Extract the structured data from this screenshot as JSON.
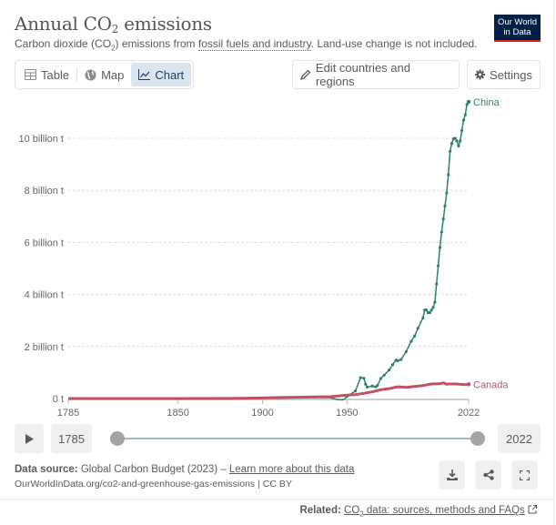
{
  "header": {
    "title_main": "Annual CO",
    "title_sub": "2",
    "title_rest": " emissions",
    "subtitle_pre": "Carbon dioxide (CO",
    "subtitle_sub": "2",
    "subtitle_mid": ") emissions from ",
    "subtitle_link": "fossil fuels and industry",
    "subtitle_post": ". Land-use change is not included.",
    "logo_line1": "Our World",
    "logo_line2": "in Data"
  },
  "tabs": [
    {
      "label": "Table",
      "icon": "table-icon",
      "active": false
    },
    {
      "label": "Map",
      "icon": "globe-icon",
      "active": false
    },
    {
      "label": "Chart",
      "icon": "line-chart-icon",
      "active": true
    }
  ],
  "toolbar": {
    "edit_label": "Edit countries and regions",
    "settings_label": "Settings"
  },
  "timeline": {
    "start_year": "1785",
    "end_year": "2022",
    "start_fraction": 0,
    "end_fraction": 1
  },
  "footer": {
    "source_label": "Data source:",
    "source_text": " Global Carbon Budget (2023) – ",
    "learn_more": "Learn more about this data",
    "url": "OurWorldInData.org/co2-and-greenhouse-gas-emissions | CC BY",
    "related_label": "Related:",
    "related_link_pre": "CO",
    "related_link_sub": "2",
    "related_link_post": " data: sources, methods and FAQs"
  },
  "colors": {
    "china": "#2c8465",
    "canada": "#c15065",
    "logo_bg": "#002147",
    "logo_accent": "#ce261e",
    "active_tab": "#dbe5f0"
  },
  "chart_data": {
    "type": "line",
    "title": "Annual CO2 emissions",
    "xlabel": "",
    "ylabel": "",
    "xlim": [
      1785,
      2022
    ],
    "ylim": [
      0,
      11.5
    ],
    "x_ticks": [
      "1785",
      "1850",
      "1900",
      "1950",
      "2022"
    ],
    "x_tick_values": [
      1785,
      1850,
      1900,
      1950,
      2022
    ],
    "y_ticks": [
      "0 t",
      "2 billion t",
      "4 billion t",
      "6 billion t",
      "8 billion t",
      "10 billion t"
    ],
    "y_tick_values": [
      0,
      2,
      4,
      6,
      8,
      10
    ],
    "grid": true,
    "legend": "inline-right",
    "series": [
      {
        "name": "China",
        "color": "#2c8465",
        "unit": "billion t",
        "points": [
          [
            1907,
            0.0
          ],
          [
            1915,
            0.02
          ],
          [
            1925,
            0.03
          ],
          [
            1935,
            0.04
          ],
          [
            1940,
            0.03
          ],
          [
            1945,
            -0.05
          ],
          [
            1948,
            -0.05
          ],
          [
            1950,
            0.08
          ],
          [
            1955,
            0.29
          ],
          [
            1958,
            0.8
          ],
          [
            1960,
            0.78
          ],
          [
            1961,
            0.55
          ],
          [
            1962,
            0.44
          ],
          [
            1965,
            0.48
          ],
          [
            1967,
            0.45
          ],
          [
            1968,
            0.5
          ],
          [
            1970,
            0.77
          ],
          [
            1972,
            0.9
          ],
          [
            1975,
            1.1
          ],
          [
            1977,
            1.3
          ],
          [
            1979,
            1.48
          ],
          [
            1980,
            1.45
          ],
          [
            1982,
            1.5
          ],
          [
            1985,
            1.8
          ],
          [
            1988,
            2.2
          ],
          [
            1990,
            2.4
          ],
          [
            1992,
            2.7
          ],
          [
            1995,
            3.1
          ],
          [
            1996,
            3.4
          ],
          [
            1997,
            3.4
          ],
          [
            1998,
            3.3
          ],
          [
            1999,
            3.3
          ],
          [
            2000,
            3.4
          ],
          [
            2001,
            3.5
          ],
          [
            2002,
            3.7
          ],
          [
            2003,
            4.4
          ],
          [
            2004,
            5.1
          ],
          [
            2005,
            5.8
          ],
          [
            2006,
            6.4
          ],
          [
            2007,
            6.9
          ],
          [
            2008,
            7.4
          ],
          [
            2009,
            7.9
          ],
          [
            2010,
            8.6
          ],
          [
            2011,
            9.5
          ],
          [
            2012,
            9.8
          ],
          [
            2013,
            9.98
          ],
          [
            2014,
            10.0
          ],
          [
            2015,
            9.9
          ],
          [
            2016,
            9.7
          ],
          [
            2017,
            9.9
          ],
          [
            2018,
            10.3
          ],
          [
            2019,
            10.7
          ],
          [
            2020,
            10.9
          ],
          [
            2021,
            11.3
          ],
          [
            2022,
            11.4
          ]
        ]
      },
      {
        "name": "Canada",
        "color": "#c15065",
        "unit": "billion t",
        "points": [
          [
            1785,
            0.0
          ],
          [
            1850,
            0.0
          ],
          [
            1880,
            0.005
          ],
          [
            1900,
            0.02
          ],
          [
            1910,
            0.04
          ],
          [
            1920,
            0.05
          ],
          [
            1930,
            0.06
          ],
          [
            1940,
            0.07
          ],
          [
            1950,
            0.13
          ],
          [
            1955,
            0.15
          ],
          [
            1960,
            0.2
          ],
          [
            1965,
            0.26
          ],
          [
            1970,
            0.34
          ],
          [
            1975,
            0.38
          ],
          [
            1980,
            0.45
          ],
          [
            1985,
            0.43
          ],
          [
            1990,
            0.46
          ],
          [
            1995,
            0.5
          ],
          [
            2000,
            0.56
          ],
          [
            2005,
            0.57
          ],
          [
            2007,
            0.6
          ],
          [
            2009,
            0.55
          ],
          [
            2010,
            0.56
          ],
          [
            2015,
            0.56
          ],
          [
            2020,
            0.53
          ],
          [
            2022,
            0.55
          ]
        ]
      }
    ]
  }
}
